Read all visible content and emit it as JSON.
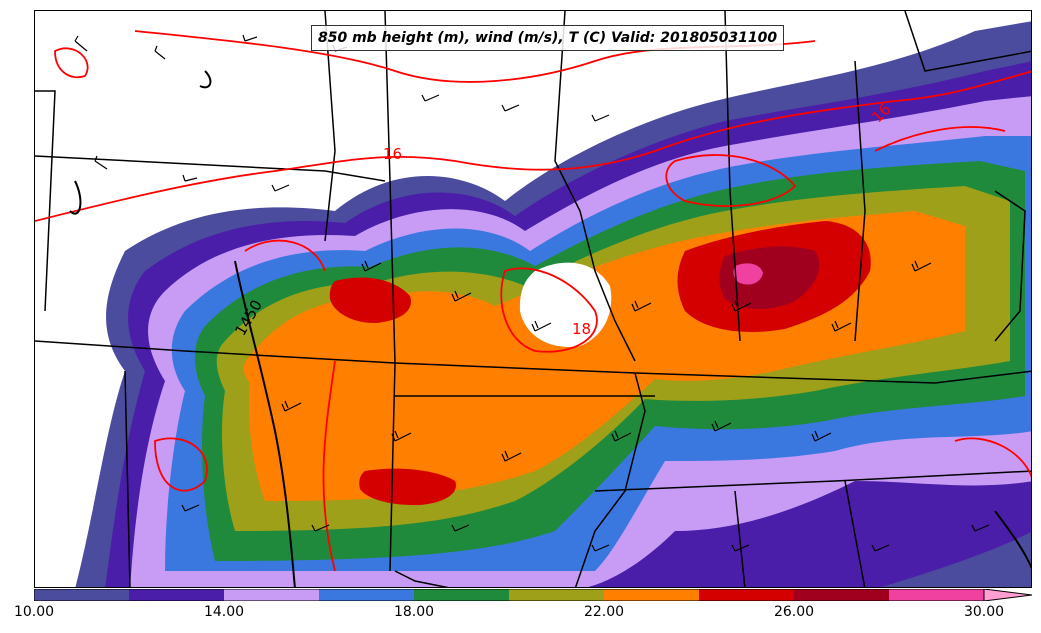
{
  "title": "850 mb height (m), wind (m/s), T (C) Valid: 201805031100",
  "colorbar": {
    "levels": [
      10,
      12,
      14,
      16,
      18,
      20,
      22,
      24,
      26,
      28,
      30
    ],
    "colors": [
      "#4b4c9e",
      "#4a1ea8",
      "#c89cf5",
      "#3a78e0",
      "#1f8a3c",
      "#9ea01a",
      "#ff7f00",
      "#d40000",
      "#a0001e",
      "#f040a0",
      "#ff9ed2"
    ],
    "extend": "max",
    "tick_labels": {
      "t10": "10.00",
      "t14": "14.00",
      "t18": "18.00",
      "t22": "22.00",
      "t26": "26.00",
      "t30": "30.00"
    }
  },
  "contour_labels": {
    "temp_16_a": "16",
    "temp_16_b": "16",
    "temp_18": "18",
    "height_1450": "1450"
  },
  "colors": {
    "temperature_contour": "#ff0000",
    "height_contour": "#000000",
    "boundaries": "#000000"
  }
}
